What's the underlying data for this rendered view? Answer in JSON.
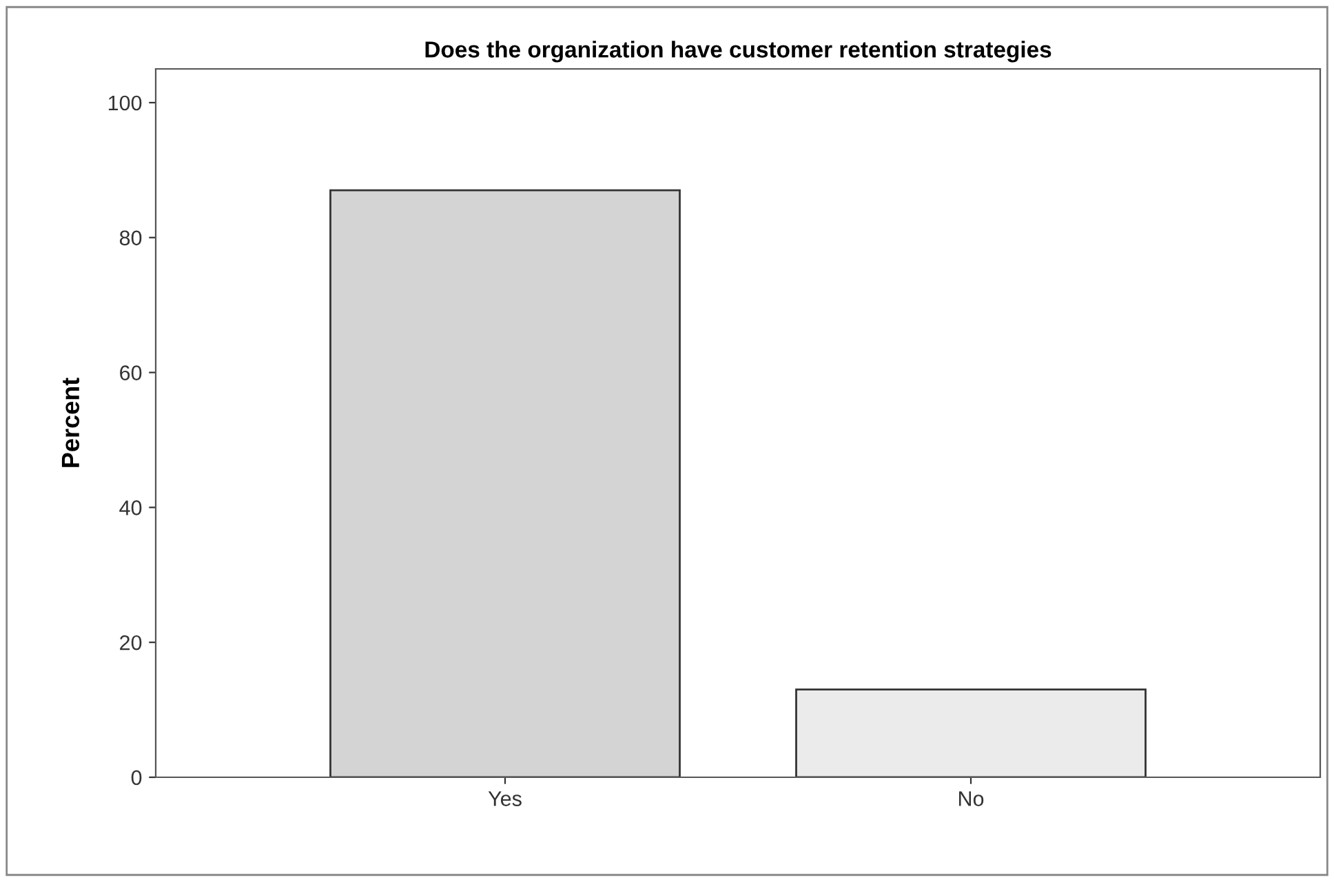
{
  "chart_data": {
    "type": "bar",
    "title": "Does the organization have customer retention strategies",
    "ylabel": "Percent",
    "categories": [
      "Yes",
      "No"
    ],
    "values": [
      87,
      13
    ],
    "colors": [
      "#d4d4d4",
      "#ebebeb"
    ],
    "ylim": [
      0,
      105
    ],
    "yticks": [
      0,
      20,
      40,
      60,
      80,
      100
    ],
    "grid": false
  }
}
